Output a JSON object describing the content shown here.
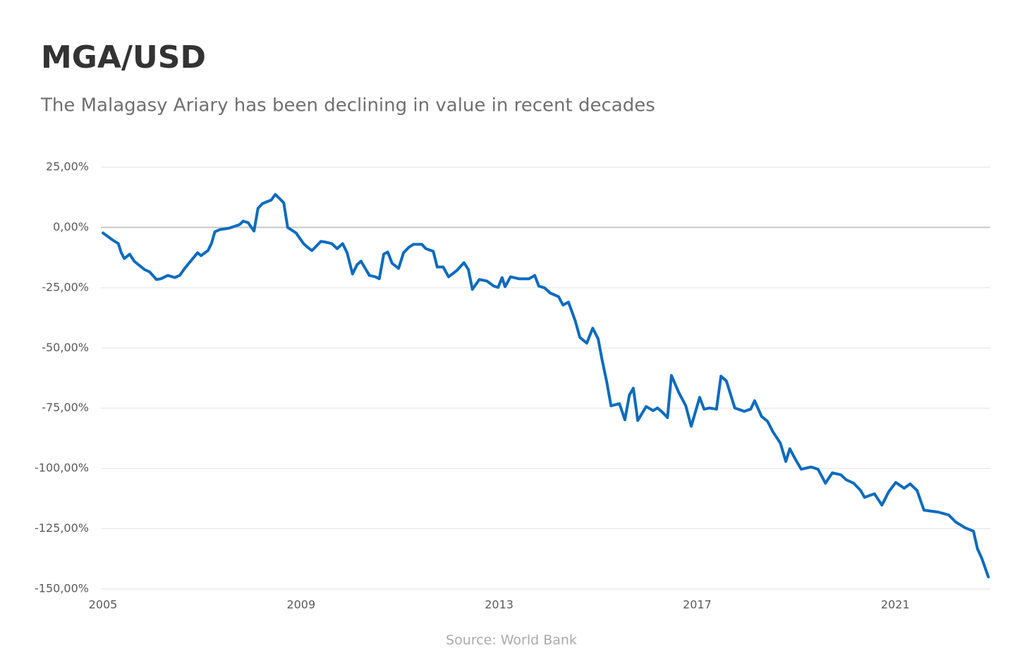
{
  "chart_data": {
    "type": "line",
    "title": "MGA/USD",
    "subtitle": "The Malagasy Ariary has been declining in value in recent decades",
    "source": "Source: World Bank",
    "color": "#0b6bc0",
    "grid": true,
    "xlim": [
      2005,
      2022.92
    ],
    "xticks": [
      2005,
      2009,
      2013,
      2017,
      2021
    ],
    "ylim": [
      -150,
      25
    ],
    "yticks": [
      {
        "value": 25,
        "label": "25,00%"
      },
      {
        "value": 0,
        "label": "0,00%"
      },
      {
        "value": -25,
        "label": "-25,00%"
      },
      {
        "value": -50,
        "label": "-50,00%"
      },
      {
        "value": -75,
        "label": "-75,00%"
      },
      {
        "value": -100,
        "label": "-100,00%"
      },
      {
        "value": -125,
        "label": "-125,00%"
      },
      {
        "value": -150,
        "label": "-150,00%"
      }
    ],
    "x": [
      2005.0,
      2005.2,
      2005.31,
      2005.37,
      2005.43,
      2005.54,
      2005.63,
      2005.84,
      2005.94,
      2006.08,
      2006.17,
      2006.31,
      2006.45,
      2006.55,
      2006.65,
      2006.91,
      2006.98,
      2007.12,
      2007.19,
      2007.26,
      2007.36,
      2007.55,
      2007.76,
      2007.83,
      2007.93,
      2008.05,
      2008.13,
      2008.22,
      2008.4,
      2008.48,
      2008.58,
      2008.65,
      2008.73,
      2008.9,
      2009.05,
      2009.13,
      2009.22,
      2009.4,
      2009.5,
      2009.62,
      2009.73,
      2009.84,
      2009.93,
      2010.04,
      2010.13,
      2010.21,
      2010.38,
      2010.5,
      2010.58,
      2010.67,
      2010.75,
      2010.84,
      2010.97,
      2011.07,
      2011.18,
      2011.27,
      2011.44,
      2011.52,
      2011.67,
      2011.75,
      2011.87,
      2011.98,
      2012.15,
      2012.29,
      2012.38,
      2012.46,
      2012.6,
      2012.75,
      2012.89,
      2012.98,
      2013.06,
      2013.12,
      2013.23,
      2013.4,
      2013.6,
      2013.72,
      2013.8,
      2013.92,
      2014.03,
      2014.2,
      2014.29,
      2014.4,
      2014.54,
      2014.63,
      2014.77,
      2014.89,
      2015.0,
      2015.08,
      2015.17,
      2015.26,
      2015.43,
      2015.54,
      2015.63,
      2015.71,
      2015.8,
      2015.97,
      2016.11,
      2016.2,
      2016.31,
      2016.4,
      2016.48,
      2016.62,
      2016.77,
      2016.88,
      2017.05,
      2017.14,
      2017.25,
      2017.39,
      2017.48,
      2017.59,
      2017.76,
      2017.95,
      2018.08,
      2018.16,
      2018.3,
      2018.42,
      2018.53,
      2018.68,
      2018.79,
      2018.87,
      2018.96,
      2019.1,
      2019.3,
      2019.44,
      2019.59,
      2019.73,
      2019.9,
      2020.01,
      2020.16,
      2020.3,
      2020.38,
      2020.58,
      2020.73,
      2020.87,
      2021.01,
      2021.18,
      2021.3,
      2021.44,
      2021.58,
      2021.87,
      2022.08,
      2022.22,
      2022.41,
      2022.58,
      2022.66,
      2022.75,
      2022.88
    ],
    "values": [
      -2.3,
      -5.3,
      -6.7,
      -10.5,
      -12.9,
      -11.1,
      -14,
      -17.5,
      -18.4,
      -21.6,
      -21.3,
      -19.9,
      -20.8,
      -19.9,
      -17,
      -10.5,
      -11.7,
      -9.6,
      -6.7,
      -1.8,
      -0.9,
      -0.3,
      1.2,
      2.6,
      2,
      -1.5,
      7.9,
      9.9,
      11.4,
      13.7,
      11.7,
      10.2,
      0,
      -2.3,
      -6.7,
      -8.2,
      -9.6,
      -5.8,
      -6.1,
      -6.7,
      -8.8,
      -6.7,
      -10.5,
      -19.3,
      -15.5,
      -14,
      -19.9,
      -20.5,
      -21.3,
      -11.1,
      -10.2,
      -14.9,
      -17,
      -10.5,
      -8.2,
      -7,
      -7,
      -8.8,
      -9.9,
      -16.4,
      -16.4,
      -20.5,
      -17.8,
      -14.6,
      -17.5,
      -25.7,
      -21.6,
      -22.2,
      -24.3,
      -24.9,
      -20.8,
      -24.6,
      -20.5,
      -21.3,
      -21.3,
      -19.9,
      -24.3,
      -25.1,
      -27.2,
      -28.7,
      -32.2,
      -31,
      -38.9,
      -45.6,
      -48,
      -41.8,
      -46.2,
      -55,
      -63.7,
      -74,
      -73.1,
      -79.8,
      -69.6,
      -66.7,
      -80.1,
      -74.3,
      -76,
      -74.9,
      -76.9,
      -78.9,
      -61.4,
      -68.1,
      -74,
      -82.5,
      -70.5,
      -75.4,
      -74.9,
      -75.4,
      -61.7,
      -63.7,
      -74.9,
      -76.3,
      -75.4,
      -71.9,
      -78.4,
      -80.4,
      -84.8,
      -89.5,
      -97.1,
      -91.8,
      -95.3,
      -100.3,
      -99.4,
      -100.3,
      -106.1,
      -101.8,
      -102.6,
      -104.7,
      -106.1,
      -109.1,
      -112,
      -110.5,
      -115.2,
      -109.6,
      -105.8,
      -108.2,
      -106.4,
      -109.1,
      -117.3,
      -118.1,
      -119.3,
      -122.2,
      -124.6,
      -126,
      -133.3,
      -137.4,
      -145
    ]
  }
}
